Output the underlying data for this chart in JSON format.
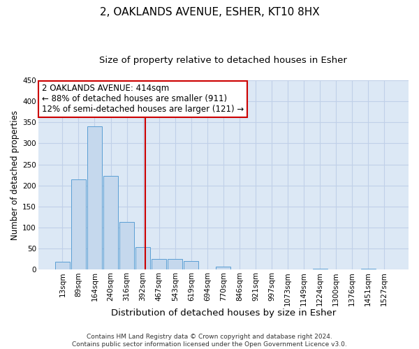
{
  "title": "2, OAKLANDS AVENUE, ESHER, KT10 8HX",
  "subtitle": "Size of property relative to detached houses in Esher",
  "xlabel": "Distribution of detached houses by size in Esher",
  "ylabel": "Number of detached properties",
  "bin_labels": [
    "13sqm",
    "89sqm",
    "164sqm",
    "240sqm",
    "316sqm",
    "392sqm",
    "467sqm",
    "543sqm",
    "619sqm",
    "694sqm",
    "770sqm",
    "846sqm",
    "921sqm",
    "997sqm",
    "1073sqm",
    "1149sqm",
    "1224sqm",
    "1300sqm",
    "1376sqm",
    "1451sqm",
    "1527sqm"
  ],
  "bar_heights": [
    18,
    215,
    340,
    222,
    113,
    53,
    26,
    25,
    20,
    0,
    7,
    0,
    0,
    0,
    0,
    0,
    2,
    0,
    0,
    2,
    0
  ],
  "bar_color": "#c5d8ed",
  "bar_edge_color": "#5a9fd4",
  "vline_x": 5.14,
  "vline_color": "#cc0000",
  "annotation_line1": "2 OAKLANDS AVENUE: 414sqm",
  "annotation_line2": "← 88% of detached houses are smaller (911)",
  "annotation_line3": "12% of semi-detached houses are larger (121) →",
  "annotation_box_color": "#cc0000",
  "ylim": [
    0,
    450
  ],
  "yticks": [
    0,
    50,
    100,
    150,
    200,
    250,
    300,
    350,
    400,
    450
  ],
  "grid_color": "#c0d0e8",
  "background_color": "#dce8f5",
  "footer_line1": "Contains HM Land Registry data © Crown copyright and database right 2024.",
  "footer_line2": "Contains public sector information licensed under the Open Government Licence v3.0.",
  "title_fontsize": 11,
  "subtitle_fontsize": 9.5,
  "xlabel_fontsize": 9.5,
  "ylabel_fontsize": 8.5,
  "annotation_fontsize": 8.5,
  "tick_fontsize": 7.5,
  "footer_fontsize": 6.5
}
